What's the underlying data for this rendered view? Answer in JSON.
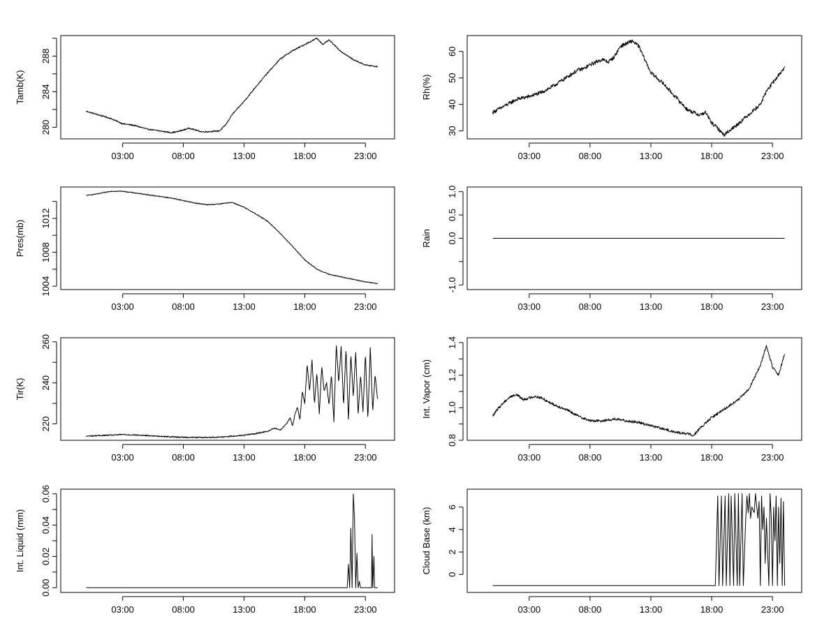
{
  "chart_data": [
    {
      "type": "line",
      "ylabel": "Tamb(K)",
      "xticks": [
        "03:00",
        "08:00",
        "13:00",
        "18:00",
        "23:00"
      ],
      "xtick_hours": [
        3,
        8,
        13,
        18,
        23
      ],
      "xlim": [
        -2.1,
        25.4
      ],
      "ylim": [
        278.7,
        290.3
      ],
      "yticks": [
        280,
        284,
        288
      ],
      "yticks_minor": [
        282,
        286,
        290
      ],
      "noise": 0.07,
      "x": [
        0,
        1,
        2,
        3,
        4,
        5,
        6,
        7,
        7.5,
        8,
        8.5,
        9,
        9.5,
        10,
        11,
        11.5,
        12,
        13,
        14,
        15,
        16,
        17,
        18,
        19,
        19.5,
        20,
        21,
        22,
        23,
        24
      ],
      "y": [
        281.8,
        281.4,
        281.0,
        280.4,
        280.2,
        279.8,
        279.6,
        279.4,
        279.5,
        279.7,
        279.9,
        279.7,
        279.5,
        279.5,
        279.6,
        280.3,
        281.4,
        282.9,
        284.6,
        286.2,
        287.7,
        288.6,
        289.3,
        290.0,
        289.3,
        289.8,
        288.5,
        287.6,
        287.0,
        286.8
      ]
    },
    {
      "type": "line",
      "ylabel": "Rh(%)",
      "xticks": [
        "03:00",
        "08:00",
        "13:00",
        "18:00",
        "23:00"
      ],
      "xtick_hours": [
        3,
        8,
        13,
        18,
        23
      ],
      "xlim": [
        -2.1,
        25.4
      ],
      "ylim": [
        27,
        66
      ],
      "yticks": [
        30,
        40,
        50,
        60
      ],
      "yticks_minor": [],
      "noise": 0.7,
      "x": [
        0,
        1,
        2,
        3,
        4,
        5,
        6,
        7,
        7.5,
        8,
        8.5,
        9,
        9.5,
        10,
        10.5,
        11,
        11.5,
        12,
        13,
        14,
        15,
        16,
        17,
        17.5,
        18,
        18.5,
        19,
        20,
        21,
        22,
        22.5,
        23,
        24
      ],
      "y": [
        37,
        39.5,
        42,
        43,
        44.5,
        47,
        50,
        53,
        53.5,
        55,
        56,
        57,
        56,
        58,
        62,
        63,
        64,
        62,
        52,
        48,
        43,
        38,
        36,
        37,
        33,
        31,
        28.5,
        32,
        36,
        40,
        45,
        48,
        54
      ]
    },
    {
      "type": "line",
      "ylabel": "Pres(mb)",
      "xticks": [
        "03:00",
        "08:00",
        "13:00",
        "18:00",
        "23:00"
      ],
      "xtick_hours": [
        3,
        8,
        13,
        18,
        23
      ],
      "xlim": [
        -2.1,
        25.4
      ],
      "ylim": [
        1003.6,
        1015.7
      ],
      "yticks": [
        1004,
        1008,
        1012
      ],
      "yticks_minor": [
        1006,
        1010,
        1014
      ],
      "noise": 0.05,
      "x": [
        0,
        1,
        2,
        3,
        4,
        5,
        6,
        7,
        8,
        9,
        10,
        11,
        12,
        13,
        14,
        15,
        16,
        17,
        18,
        19,
        20,
        21,
        22,
        23,
        24
      ],
      "y": [
        1014.7,
        1014.9,
        1015.2,
        1015.2,
        1015.0,
        1014.8,
        1014.6,
        1014.4,
        1014.1,
        1013.8,
        1013.6,
        1013.7,
        1013.9,
        1013.3,
        1012.5,
        1011.6,
        1010.2,
        1008.7,
        1007.1,
        1006.0,
        1005.4,
        1005.1,
        1004.8,
        1004.5,
        1004.3
      ]
    },
    {
      "type": "line",
      "ylabel": "Rain",
      "xticks": [
        "03:00",
        "08:00",
        "13:00",
        "18:00",
        "23:00"
      ],
      "xtick_hours": [
        3,
        8,
        13,
        18,
        23
      ],
      "xlim": [
        -2.1,
        25.4
      ],
      "ylim": [
        -1.1,
        1.1
      ],
      "yticks": [
        -1.0,
        -0.5,
        0.0,
        0.5,
        1.0
      ],
      "ytick_labels": [
        "-1.0",
        "",
        "0.0",
        "0.5",
        "1.0"
      ],
      "yticks_minor": [],
      "noise": 0,
      "x": [
        0,
        24
      ],
      "y": [
        0,
        0
      ]
    },
    {
      "type": "line",
      "ylabel": "Tir(K)",
      "xticks": [
        "03:00",
        "08:00",
        "13:00",
        "18:00",
        "23:00"
      ],
      "xtick_hours": [
        3,
        8,
        13,
        18,
        23
      ],
      "xlim": [
        -2.1,
        25.4
      ],
      "ylim": [
        212,
        262
      ],
      "yticks": [
        220,
        240,
        260
      ],
      "yticks_minor": [
        230,
        250
      ],
      "noise": 0.3,
      "x": [
        0,
        1,
        2,
        3,
        4,
        5,
        6,
        7,
        8,
        9,
        10,
        11,
        12,
        13,
        14,
        15,
        15.5,
        16,
        16.5,
        16.8,
        17,
        17.2,
        17.4,
        17.6,
        17.8,
        18,
        18.2,
        18.4,
        18.6,
        18.8,
        19,
        19.2,
        19.4,
        19.6,
        19.8,
        20,
        20.2,
        20.4,
        20.6,
        20.8,
        21,
        21.2,
        21.4,
        21.6,
        21.8,
        22,
        22.2,
        22.4,
        22.6,
        22.8,
        23,
        23.2,
        23.4,
        23.6,
        23.8,
        24
      ],
      "y": [
        214,
        214.3,
        214.5,
        214.8,
        214.6,
        214.3,
        214,
        213.7,
        213.5,
        213.4,
        213.4,
        213.6,
        214,
        214.5,
        215.3,
        216.5,
        218,
        217,
        220,
        223,
        219,
        225,
        228,
        222,
        236,
        230,
        249,
        236,
        251,
        230,
        245,
        225,
        248,
        236,
        240,
        229,
        244,
        221,
        259,
        240,
        258,
        229,
        257,
        222,
        254,
        233,
        255,
        224,
        244,
        226,
        254,
        222,
        257,
        226,
        244,
        232
      ]
    },
    {
      "type": "line",
      "ylabel": "Int. Vapor (cm)",
      "xticks": [
        "03:00",
        "08:00",
        "13:00",
        "18:00",
        "23:00"
      ],
      "xtick_hours": [
        3,
        8,
        13,
        18,
        23
      ],
      "xlim": [
        -2.1,
        25.4
      ],
      "ylim": [
        0.8,
        1.43
      ],
      "yticks": [
        0.8,
        1.0,
        1.2,
        1.4
      ],
      "ytick_labels": [
        "0.8",
        "1.0",
        "1.2",
        "1.4"
      ],
      "yticks_minor": [
        0.9,
        1.1,
        1.3
      ],
      "noise": 0.008,
      "x": [
        0,
        0.5,
        1,
        1.5,
        2,
        2.5,
        3,
        3.5,
        4,
        4.5,
        5,
        6,
        7,
        8,
        9,
        10,
        11,
        12,
        13,
        14,
        15,
        16,
        16.5,
        17,
        18,
        19,
        20,
        20.5,
        21,
        21.5,
        22,
        22.5,
        23,
        23.5,
        24
      ],
      "y": [
        0.95,
        1.0,
        1.04,
        1.07,
        1.08,
        1.05,
        1.06,
        1.07,
        1.06,
        1.04,
        1.02,
        0.99,
        0.95,
        0.92,
        0.92,
        0.93,
        0.92,
        0.91,
        0.89,
        0.87,
        0.85,
        0.84,
        0.83,
        0.87,
        0.94,
        0.99,
        1.04,
        1.07,
        1.11,
        1.18,
        1.26,
        1.38,
        1.25,
        1.2,
        1.33
      ]
    },
    {
      "type": "line",
      "ylabel": "Int. Liquid (mm)",
      "xticks": [
        "03:00",
        "08:00",
        "13:00",
        "18:00",
        "23:00"
      ],
      "xtick_hours": [
        3,
        8,
        13,
        18,
        23
      ],
      "xlim": [
        -2.1,
        25.4
      ],
      "ylim": [
        -0.003,
        0.063
      ],
      "yticks": [
        0.0,
        0.02,
        0.04,
        0.06
      ],
      "ytick_labels": [
        "0.00",
        "0.02",
        "0.04",
        "0.06"
      ],
      "yticks_minor": [
        0.01,
        0.03,
        0.05
      ],
      "noise": 0,
      "x": [
        0,
        21.5,
        21.6,
        21.7,
        21.8,
        21.9,
        22.0,
        22.1,
        22.2,
        22.3,
        22.4,
        22.5,
        22.6,
        22.7,
        23.5,
        23.55,
        23.6,
        23.7,
        23.75,
        23.8,
        24
      ],
      "y": [
        0,
        0,
        0.015,
        0,
        0.038,
        0,
        0.06,
        0.045,
        0,
        0.022,
        0,
        0.004,
        0,
        0,
        0,
        0.034,
        0,
        0.02,
        0,
        0,
        0
      ]
    },
    {
      "type": "line",
      "ylabel": "Cloud Base (km)",
      "xticks": [
        "03:00",
        "08:00",
        "13:00",
        "18:00",
        "23:00"
      ],
      "xtick_hours": [
        3,
        8,
        13,
        18,
        23
      ],
      "xlim": [
        -2.1,
        25.4
      ],
      "ylim": [
        -1.6,
        7.6
      ],
      "yticks": [
        0,
        2,
        4,
        6
      ],
      "yticks_minor": [],
      "noise": 0,
      "x": [
        0,
        18.0,
        18.3,
        18.5,
        18.6,
        18.8,
        18.9,
        19.1,
        19.2,
        19.4,
        19.5,
        19.6,
        19.8,
        19.9,
        20.1,
        20.2,
        20.3,
        20.5,
        20.6,
        20.8,
        20.9,
        21.0,
        21.1,
        21.2,
        21.3,
        21.5,
        21.6,
        21.8,
        21.9,
        22.0,
        22.1,
        22.2,
        22.3,
        22.4,
        22.5,
        22.7,
        22.8,
        22.9,
        23.0,
        23.1,
        23.2,
        23.3,
        23.4,
        23.5,
        23.6,
        23.7,
        23.8,
        23.9,
        24
      ],
      "y": [
        -1,
        -1,
        -1,
        7,
        -1,
        7,
        -1,
        7,
        -1,
        7.2,
        -1,
        7,
        -1,
        7.2,
        -1,
        7.2,
        -1,
        7.2,
        -1,
        5,
        7,
        5.5,
        7.2,
        5,
        6,
        5.5,
        7.2,
        5,
        6.5,
        -1,
        7,
        4,
        6,
        1,
        5,
        -1,
        7.2,
        5,
        -1,
        6,
        3,
        7,
        -1,
        6,
        1,
        6.8,
        -1,
        6.5,
        -1
      ]
    }
  ]
}
